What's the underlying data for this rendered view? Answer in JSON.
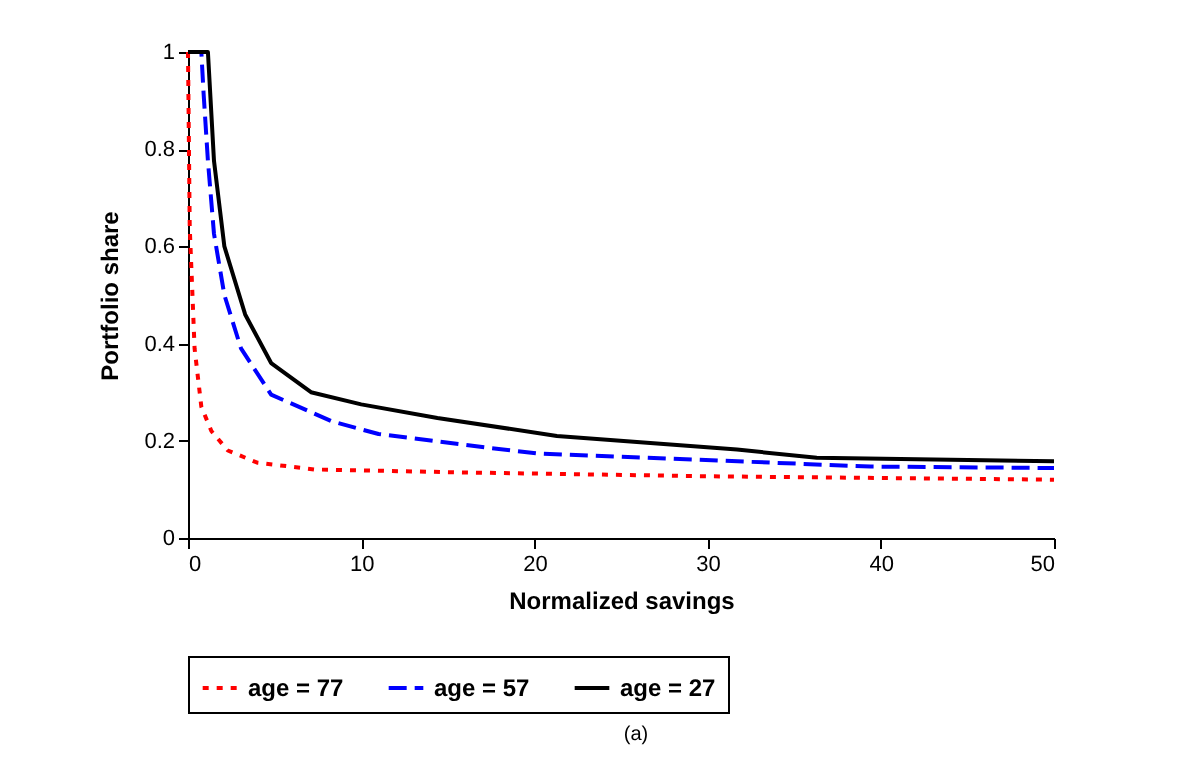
{
  "chart_data": {
    "type": "line",
    "xlabel": "Normalized savings",
    "ylabel": "Portfolio share",
    "xlim": [
      0,
      50
    ],
    "ylim": [
      0,
      1
    ],
    "xticks": [
      0,
      10,
      20,
      30,
      40,
      50
    ],
    "yticks": [
      0,
      0.2,
      0.4,
      0.6,
      0.8,
      1
    ],
    "grid": false,
    "legend": "bottom",
    "marker": "none",
    "annotations": [
      "(a)"
    ],
    "series": [
      {
        "name": "age = 77",
        "color": "#ff0000",
        "line_style": "dotted",
        "x": [
          0,
          0.1,
          0.38,
          0.77,
          1.35,
          2.3,
          4,
          7.3,
          15.7,
          30,
          50
        ],
        "values": [
          1,
          0.64,
          0.39,
          0.27,
          0.22,
          0.18,
          0.155,
          0.141,
          0.135,
          0.127,
          0.12
        ]
      },
      {
        "name": "age = 57",
        "color": "#0000ff",
        "line_style": "dashed",
        "x": [
          0,
          0.77,
          0.9,
          1.15,
          1.5,
          2.1,
          3.06,
          4.8,
          8.3,
          11,
          17.5,
          20.2,
          39.4,
          50
        ],
        "values": [
          1,
          1,
          0.915,
          0.776,
          0.626,
          0.5,
          0.39,
          0.295,
          0.24,
          0.214,
          0.185,
          0.174,
          0.147,
          0.144
        ]
      },
      {
        "name": "age = 27",
        "color": "#000000",
        "line_style": "solid",
        "x": [
          0,
          1.15,
          1.5,
          2.1,
          3.3,
          4.8,
          7.1,
          10,
          14.4,
          21.3,
          31.7,
          36.3,
          50
        ],
        "values": [
          1,
          1,
          0.776,
          0.6,
          0.46,
          0.36,
          0.3,
          0.275,
          0.247,
          0.21,
          0.182,
          0.165,
          0.158
        ]
      }
    ]
  }
}
